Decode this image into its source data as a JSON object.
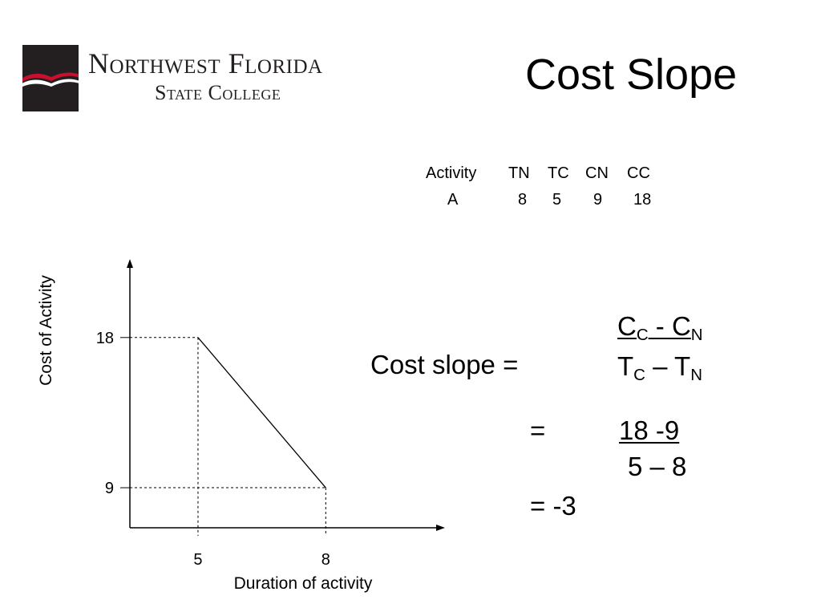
{
  "slide": {
    "title": "Cost Slope",
    "logo": {
      "line1": "Northwest Florida",
      "line2": "State College"
    }
  },
  "table": {
    "headers": [
      "Activity",
      "TN",
      "TC",
      "CN",
      "CC"
    ],
    "rows": [
      [
        "A",
        "8",
        "5",
        "9",
        "18"
      ]
    ]
  },
  "formula": {
    "label": "Cost slope =",
    "numerator": {
      "c1": "C",
      "s1": "C",
      "op": " - ",
      "c2": "C",
      "s2": "N"
    },
    "denominator": {
      "t1": "T",
      "s1": "C",
      "op": " – ",
      "t2": "T",
      "s2": "N"
    },
    "step2_eq": "=",
    "step2_num": "18 -9",
    "step2_den": "5 – 8",
    "result": "= -3"
  },
  "chart_data": {
    "type": "line",
    "xlabel": "Duration of activity",
    "ylabel": "Cost of Activity",
    "x_ticks": [
      5,
      8
    ],
    "y_ticks": [
      18,
      9
    ],
    "x": [
      5,
      8
    ],
    "y": [
      18,
      9
    ],
    "xlim": [
      3.4,
      10.8
    ],
    "ylim": [
      6.6,
      22.7
    ],
    "grid": false,
    "guides": "dashed"
  },
  "colors": {
    "logo_dark": "#231f20",
    "logo_red": "#c8102e",
    "line": "#000000"
  }
}
